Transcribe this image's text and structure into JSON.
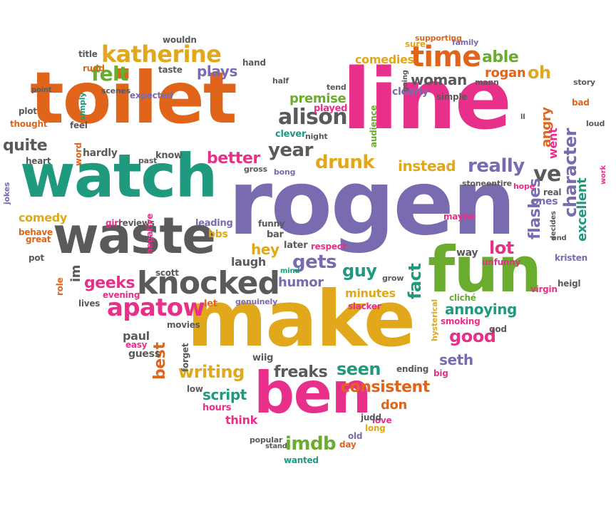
{
  "palette": {
    "orange": "#e0651a",
    "pink": "#e8308a",
    "teal": "#1f9a7e",
    "purple": "#7a6bb0",
    "gold": "#e0a81a",
    "green": "#6aac2e",
    "gray": "#5a5a5a"
  },
  "words": [
    {
      "id": "w0",
      "text": "toilet",
      "color": "orange"
    },
    {
      "id": "w1",
      "text": "line",
      "color": "pink"
    },
    {
      "id": "w2",
      "text": "watch",
      "color": "teal"
    },
    {
      "id": "w3",
      "text": "rogen",
      "color": "purple"
    },
    {
      "id": "w4",
      "text": "make",
      "color": "gold"
    },
    {
      "id": "w5",
      "text": "fun",
      "color": "green"
    },
    {
      "id": "w6",
      "text": "waste",
      "color": "gray"
    },
    {
      "id": "w7",
      "text": "ben",
      "color": "pink"
    },
    {
      "id": "w8",
      "text": "knocked",
      "color": "gray"
    },
    {
      "id": "w9",
      "text": "katherine",
      "color": "gold"
    },
    {
      "id": "w10",
      "text": "time",
      "color": "orange"
    },
    {
      "id": "w11",
      "text": "apatow",
      "color": "pink"
    },
    {
      "id": "w12",
      "text": "alison",
      "color": "gray"
    },
    {
      "id": "w13",
      "text": "drunk",
      "color": "gold"
    },
    {
      "id": "w14",
      "text": "really",
      "color": "purple"
    },
    {
      "id": "w15",
      "text": "felt",
      "color": "green"
    },
    {
      "id": "w16",
      "text": "plays",
      "color": "purple"
    },
    {
      "id": "w17",
      "text": "woman",
      "color": "gray"
    },
    {
      "id": "w18",
      "text": "able",
      "color": "green"
    },
    {
      "id": "w19",
      "text": "rogan",
      "color": "orange"
    },
    {
      "id": "w20",
      "text": "oh",
      "color": "gold"
    },
    {
      "id": "w21",
      "text": "comedies",
      "color": "gold"
    },
    {
      "id": "w22",
      "text": "year",
      "color": "gray"
    },
    {
      "id": "w23",
      "text": "better",
      "color": "pink"
    },
    {
      "id": "w24",
      "text": "instead",
      "color": "gold"
    },
    {
      "id": "w25",
      "text": "ve",
      "color": "gray"
    },
    {
      "id": "w26",
      "text": "character",
      "color": "purple"
    },
    {
      "id": "w27",
      "text": "flashes",
      "color": "purple"
    },
    {
      "id": "w28",
      "text": "angry",
      "color": "orange"
    },
    {
      "id": "w29",
      "text": "went",
      "color": "pink"
    },
    {
      "id": "w30",
      "text": "excellent",
      "color": "teal"
    },
    {
      "id": "w31",
      "text": "quite",
      "color": "gray"
    },
    {
      "id": "w32",
      "text": "comedy",
      "color": "gold"
    },
    {
      "id": "w33",
      "text": "geeks",
      "color": "pink"
    },
    {
      "id": "w34",
      "text": "gets",
      "color": "purple"
    },
    {
      "id": "w35",
      "text": "guy",
      "color": "teal"
    },
    {
      "id": "w36",
      "text": "hey",
      "color": "gold"
    },
    {
      "id": "w37",
      "text": "humor",
      "color": "purple"
    },
    {
      "id": "w38",
      "text": "fact",
      "color": "teal"
    },
    {
      "id": "w39",
      "text": "lot",
      "color": "pink"
    },
    {
      "id": "w40",
      "text": "minutes",
      "color": "gold"
    },
    {
      "id": "w41",
      "text": "annoying",
      "color": "teal"
    },
    {
      "id": "w42",
      "text": "good",
      "color": "pink"
    },
    {
      "id": "w43",
      "text": "seth",
      "color": "purple"
    },
    {
      "id": "w44",
      "text": "best",
      "color": "orange"
    },
    {
      "id": "w45",
      "text": "writing",
      "color": "gold"
    },
    {
      "id": "w46",
      "text": "freaks",
      "color": "gray"
    },
    {
      "id": "w47",
      "text": "seen",
      "color": "teal"
    },
    {
      "id": "w48",
      "text": "consistent",
      "color": "orange"
    },
    {
      "id": "w49",
      "text": "script",
      "color": "teal"
    },
    {
      "id": "w50",
      "text": "don",
      "color": "orange"
    },
    {
      "id": "w51",
      "text": "imdb",
      "color": "green"
    },
    {
      "id": "w52",
      "text": "premise",
      "color": "green"
    },
    {
      "id": "w53",
      "text": "im",
      "color": "gray"
    },
    {
      "id": "w54",
      "text": "paul",
      "color": "gray"
    },
    {
      "id": "w55",
      "text": "laugh",
      "color": "gray"
    },
    {
      "id": "w56",
      "text": "bbs",
      "color": "gold"
    },
    {
      "id": "w57",
      "text": "think",
      "color": "pink"
    },
    {
      "id": "w58",
      "text": "ones",
      "color": "purple"
    },
    {
      "id": "w59",
      "text": "real",
      "color": "gray"
    },
    {
      "id": "w60",
      "text": "kristen",
      "color": "purple"
    },
    {
      "id": "w61",
      "text": "heigl",
      "color": "gray"
    },
    {
      "id": "w62",
      "text": "unfunny",
      "color": "pink"
    },
    {
      "id": "w63",
      "text": "way",
      "color": "gray"
    },
    {
      "id": "w64",
      "text": "maybe",
      "color": "pink"
    },
    {
      "id": "w65",
      "text": "god",
      "color": "gray"
    },
    {
      "id": "w66",
      "text": "smoking",
      "color": "pink"
    },
    {
      "id": "w67",
      "text": "hysterical",
      "color": "gold"
    },
    {
      "id": "w68",
      "text": "cliché",
      "color": "green"
    },
    {
      "id": "w69",
      "text": "ending",
      "color": "gray"
    },
    {
      "id": "w70",
      "text": "big",
      "color": "pink"
    },
    {
      "id": "w71",
      "text": "love",
      "color": "pink"
    },
    {
      "id": "w72",
      "text": "judd",
      "color": "gray"
    },
    {
      "id": "w73",
      "text": "long",
      "color": "gold"
    },
    {
      "id": "w74",
      "text": "old",
      "color": "purple"
    },
    {
      "id": "w75",
      "text": "day",
      "color": "orange"
    },
    {
      "id": "w76",
      "text": "popular",
      "color": "gray"
    },
    {
      "id": "w77",
      "text": "stand",
      "color": "gray"
    },
    {
      "id": "w78",
      "text": "wanted",
      "color": "teal"
    },
    {
      "id": "w79",
      "text": "hours",
      "color": "pink"
    },
    {
      "id": "w80",
      "text": "low",
      "color": "gray"
    },
    {
      "id": "w81",
      "text": "wiig",
      "color": "gray"
    },
    {
      "id": "w82",
      "text": "movies",
      "color": "gray"
    },
    {
      "id": "w83",
      "text": "easy",
      "color": "pink"
    },
    {
      "id": "w84",
      "text": "guess",
      "color": "gray"
    },
    {
      "id": "w85",
      "text": "forget",
      "color": "gray"
    },
    {
      "id": "w86",
      "text": "lives",
      "color": "gray"
    },
    {
      "id": "w87",
      "text": "evening",
      "color": "pink"
    },
    {
      "id": "w88",
      "text": "scott",
      "color": "gray"
    },
    {
      "id": "w89",
      "text": "let",
      "color": "orange"
    },
    {
      "id": "w90",
      "text": "genuinely",
      "color": "purple"
    },
    {
      "id": "w91",
      "text": "slacker",
      "color": "pink"
    },
    {
      "id": "w92",
      "text": "grow",
      "color": "gray"
    },
    {
      "id": "w93",
      "text": "mind",
      "color": "teal"
    },
    {
      "id": "w94",
      "text": "later",
      "color": "gray"
    },
    {
      "id": "w95",
      "text": "respect",
      "color": "pink"
    },
    {
      "id": "w96",
      "text": "bar",
      "color": "gray"
    },
    {
      "id": "w97",
      "text": "funny",
      "color": "gray"
    },
    {
      "id": "w98",
      "text": "leading",
      "color": "purple"
    },
    {
      "id": "w99",
      "text": "girl",
      "color": "pink"
    },
    {
      "id": "w100",
      "text": "reviews",
      "color": "gray"
    },
    {
      "id": "w101",
      "text": "negative",
      "color": "pink"
    },
    {
      "id": "w102",
      "text": "behave",
      "color": "orange"
    },
    {
      "id": "w103",
      "text": "great",
      "color": "orange"
    },
    {
      "id": "w104",
      "text": "pot",
      "color": "gray"
    },
    {
      "id": "w105",
      "text": "role",
      "color": "orange"
    },
    {
      "id": "w106",
      "text": "jokes",
      "color": "purple"
    },
    {
      "id": "w107",
      "text": "heart",
      "color": "gray"
    },
    {
      "id": "w108",
      "text": "thought",
      "color": "orange"
    },
    {
      "id": "w109",
      "text": "plot",
      "color": "gray"
    },
    {
      "id": "w110",
      "text": "point",
      "color": "gray"
    },
    {
      "id": "w111",
      "text": "feel",
      "color": "gray"
    },
    {
      "id": "w112",
      "text": "word",
      "color": "orange"
    },
    {
      "id": "w113",
      "text": "hardly",
      "color": "gray"
    },
    {
      "id": "w114",
      "text": "past",
      "color": "gray"
    },
    {
      "id": "w115",
      "text": "know",
      "color": "gray"
    },
    {
      "id": "w116",
      "text": "gross",
      "color": "gray"
    },
    {
      "id": "w117",
      "text": "bong",
      "color": "purple"
    },
    {
      "id": "w118",
      "text": "clever",
      "color": "teal"
    },
    {
      "id": "w119",
      "text": "night",
      "color": "gray"
    },
    {
      "id": "w120",
      "text": "played",
      "color": "pink"
    },
    {
      "id": "w121",
      "text": "audience",
      "color": "green"
    },
    {
      "id": "w122",
      "text": "clearly",
      "color": "purple"
    },
    {
      "id": "w123",
      "text": "simple",
      "color": "gray"
    },
    {
      "id": "w124",
      "text": "ll",
      "color": "gray"
    },
    {
      "id": "w125",
      "text": "bad",
      "color": "orange"
    },
    {
      "id": "w126",
      "text": "loud",
      "color": "gray"
    },
    {
      "id": "w127",
      "text": "work",
      "color": "pink"
    },
    {
      "id": "w128",
      "text": "end",
      "color": "gray"
    },
    {
      "id": "w129",
      "text": "hope",
      "color": "pink"
    },
    {
      "id": "w130",
      "text": "entire",
      "color": "gray"
    },
    {
      "id": "w131",
      "text": "stone",
      "color": "gray"
    },
    {
      "id": "w132",
      "text": "decides",
      "color": "gray"
    },
    {
      "id": "w133",
      "text": "virgin",
      "color": "pink"
    },
    {
      "id": "w134",
      "text": "story",
      "color": "gray"
    },
    {
      "id": "w135",
      "text": "tend",
      "color": "gray"
    },
    {
      "id": "w136",
      "text": "half",
      "color": "gray"
    },
    {
      "id": "w137",
      "text": "hand",
      "color": "gray"
    },
    {
      "id": "w138",
      "text": "sure",
      "color": "gold"
    },
    {
      "id": "w139",
      "text": "supporting",
      "color": "orange"
    },
    {
      "id": "w140",
      "text": "family",
      "color": "purple"
    },
    {
      "id": "w141",
      "text": "going",
      "color": "gray"
    },
    {
      "id": "w142",
      "text": "mann",
      "color": "gray"
    },
    {
      "id": "w143",
      "text": "wouldn",
      "color": "gray"
    },
    {
      "id": "w144",
      "text": "title",
      "color": "gray"
    },
    {
      "id": "w145",
      "text": "rudd",
      "color": "orange"
    },
    {
      "id": "w146",
      "text": "simply",
      "color": "teal"
    },
    {
      "id": "w147",
      "text": "taste",
      "color": "gray"
    },
    {
      "id": "w148",
      "text": "scenes",
      "color": "gray"
    },
    {
      "id": "w149",
      "text": "expected",
      "color": "purple"
    }
  ]
}
